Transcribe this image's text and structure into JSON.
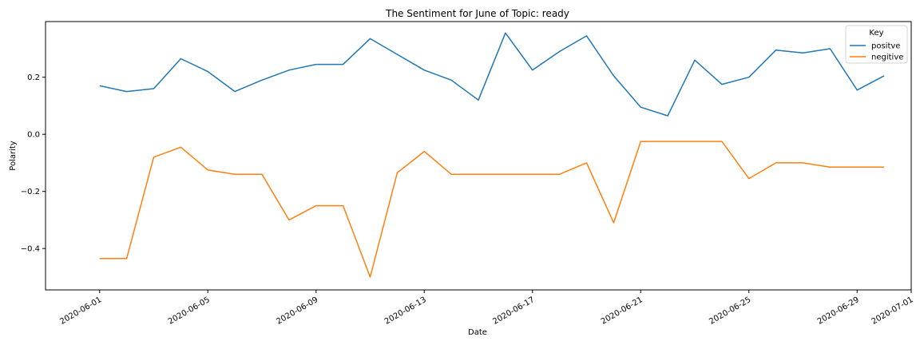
{
  "chart_data": {
    "type": "line",
    "title": "The Sentiment for June of Topic: ready",
    "xlabel": "Date",
    "ylabel": "Polarity",
    "x": [
      "2020-06-01",
      "2020-06-02",
      "2020-06-03",
      "2020-06-04",
      "2020-06-05",
      "2020-06-06",
      "2020-06-07",
      "2020-06-08",
      "2020-06-09",
      "2020-06-10",
      "2020-06-11",
      "2020-06-12",
      "2020-06-13",
      "2020-06-14",
      "2020-06-15",
      "2020-06-16",
      "2020-06-17",
      "2020-06-18",
      "2020-06-19",
      "2020-06-20",
      "2020-06-21",
      "2020-06-22",
      "2020-06-23",
      "2020-06-24",
      "2020-06-25",
      "2020-06-26",
      "2020-06-27",
      "2020-06-28",
      "2020-06-29",
      "2020-06-30"
    ],
    "series": [
      {
        "name": "positve",
        "color": "#1f77b4",
        "values": [
          0.17,
          0.15,
          0.16,
          0.265,
          0.22,
          0.15,
          0.19,
          0.225,
          0.245,
          0.245,
          0.335,
          0.28,
          0.225,
          0.19,
          0.12,
          0.355,
          0.225,
          0.29,
          0.345,
          0.205,
          0.095,
          0.065,
          0.26,
          0.175,
          0.2,
          0.295,
          0.285,
          0.3,
          0.155,
          0.205
        ]
      },
      {
        "name": "negitive",
        "color": "#ff7f0e",
        "values": [
          -0.435,
          -0.435,
          -0.08,
          -0.045,
          -0.125,
          -0.14,
          -0.14,
          -0.3,
          -0.25,
          -0.25,
          -0.5,
          -0.135,
          -0.06,
          -0.14,
          -0.14,
          -0.14,
          -0.14,
          -0.14,
          -0.1,
          -0.31,
          -0.025,
          -0.025,
          -0.025,
          -0.025,
          -0.155,
          -0.1,
          -0.1,
          -0.115,
          -0.115,
          -0.115
        ]
      }
    ],
    "xticks": [
      "2020-06-01",
      "2020-06-05",
      "2020-06-09",
      "2020-06-13",
      "2020-06-17",
      "2020-06-21",
      "2020-06-25",
      "2020-06-29",
      "2020-07-01"
    ],
    "yticks": [
      -0.4,
      -0.2,
      0.0,
      0.2
    ],
    "ytick_labels": [
      "−0.4",
      "−0.2",
      "0.0",
      "0.2"
    ],
    "xlim": [
      "2020-05-30",
      "2020-07-01"
    ],
    "ylim": [
      -0.545,
      0.395
    ],
    "grid": false,
    "legend": {
      "title": "Key",
      "placement": "top-right"
    }
  }
}
